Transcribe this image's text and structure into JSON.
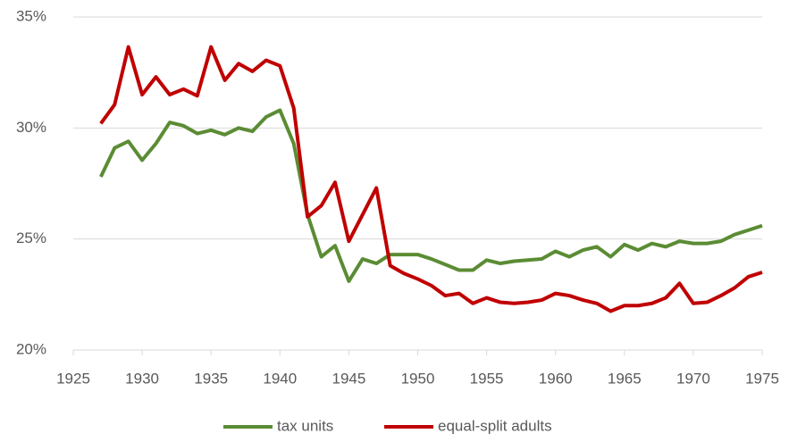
{
  "chart_data": {
    "type": "line",
    "x": [
      1927,
      1928,
      1929,
      1930,
      1931,
      1932,
      1933,
      1934,
      1935,
      1936,
      1937,
      1938,
      1939,
      1940,
      1941,
      1942,
      1943,
      1944,
      1945,
      1946,
      1947,
      1948,
      1949,
      1950,
      1951,
      1952,
      1953,
      1954,
      1955,
      1956,
      1957,
      1958,
      1959,
      1960,
      1961,
      1962,
      1963,
      1964,
      1965,
      1966,
      1967,
      1968,
      1969,
      1970,
      1971,
      1972,
      1973,
      1974,
      1975
    ],
    "series": [
      {
        "name": "tax units",
        "color": "#5b8c34",
        "values": [
          27.8,
          29.1,
          29.4,
          28.55,
          29.3,
          30.25,
          30.1,
          29.75,
          29.9,
          29.7,
          30.0,
          29.85,
          30.5,
          30.8,
          29.3,
          26.1,
          24.2,
          24.7,
          23.1,
          24.1,
          23.9,
          24.3,
          24.3,
          24.3,
          24.1,
          23.85,
          23.6,
          23.6,
          24.05,
          23.9,
          24.0,
          24.05,
          24.1,
          24.45,
          24.2,
          24.5,
          24.65,
          24.2,
          24.75,
          24.5,
          24.8,
          24.65,
          24.9,
          24.8,
          24.8,
          24.9,
          25.2,
          25.4,
          25.6
        ]
      },
      {
        "name": "equal-split adults",
        "color": "#c00000",
        "values": [
          30.2,
          31.05,
          33.65,
          31.5,
          32.3,
          31.5,
          31.75,
          31.45,
          33.65,
          32.15,
          32.9,
          32.55,
          33.05,
          32.8,
          30.9,
          26.0,
          26.5,
          27.55,
          24.9,
          26.1,
          27.3,
          23.8,
          23.45,
          23.2,
          22.9,
          22.45,
          22.55,
          22.1,
          22.35,
          22.15,
          22.1,
          22.15,
          22.25,
          22.55,
          22.45,
          22.25,
          22.1,
          21.75,
          22.0,
          22.0,
          22.1,
          22.35,
          23.0,
          22.1,
          22.15,
          22.45,
          22.8,
          23.3,
          23.5
        ]
      }
    ],
    "xlim": [
      1925,
      1975
    ],
    "xticks": [
      1925,
      1930,
      1935,
      1940,
      1945,
      1950,
      1955,
      1960,
      1965,
      1970,
      1975
    ],
    "ylim": [
      20,
      35
    ],
    "yticks": [
      {
        "value": 20,
        "label": "20%"
      },
      {
        "value": 25,
        "label": "25%"
      },
      {
        "value": 30,
        "label": "30%"
      },
      {
        "value": 35,
        "label": "35%"
      }
    ],
    "grid": true,
    "legend": "bottom"
  }
}
